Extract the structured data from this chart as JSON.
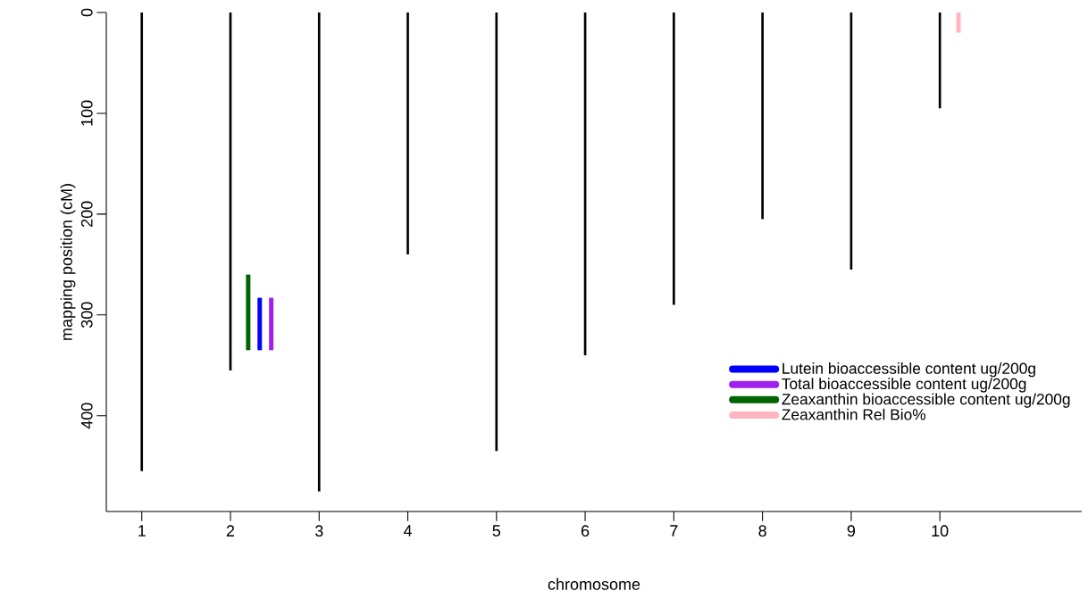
{
  "chart_data": {
    "type": "bar",
    "xlabel": "chromosome",
    "ylabel": "mapping position (cM)",
    "xlim": [
      0.6,
      11.6
    ],
    "xticks": [
      1,
      2,
      3,
      4,
      5,
      6,
      7,
      8,
      9,
      10
    ],
    "ylim": [
      495,
      0
    ],
    "yticks": [
      0,
      100,
      200,
      300,
      400
    ],
    "legend": "bottom right",
    "series": [
      {
        "color": "#000000",
        "x": [
          1,
          2,
          3,
          4,
          5,
          6,
          7,
          8,
          9,
          10
        ],
        "values": [
          455,
          355,
          475,
          240,
          435,
          340,
          290,
          205,
          255,
          95
        ]
      },
      {
        "name": "Lutein bioaccessible content ug/200g",
        "color": "#0000ff",
        "x": [
          2.33
        ],
        "base": [
          283
        ],
        "values": [
          52
        ]
      },
      {
        "name": "Total bioaccessible content ug/200g",
        "color": "#a020f0",
        "x": [
          2.46
        ],
        "base": [
          283
        ],
        "values": [
          52
        ]
      },
      {
        "name": "Zeaxanthin bioaccessible content ug/200g",
        "color": "#006400",
        "x": [
          2.2
        ],
        "base": [
          260
        ],
        "values": [
          75
        ]
      },
      {
        "name": "Zeaxanthin Rel Bio%",
        "color": "#ffb6c1",
        "x": [
          10.21
        ],
        "base": [
          0
        ],
        "values": [
          20
        ]
      }
    ]
  }
}
